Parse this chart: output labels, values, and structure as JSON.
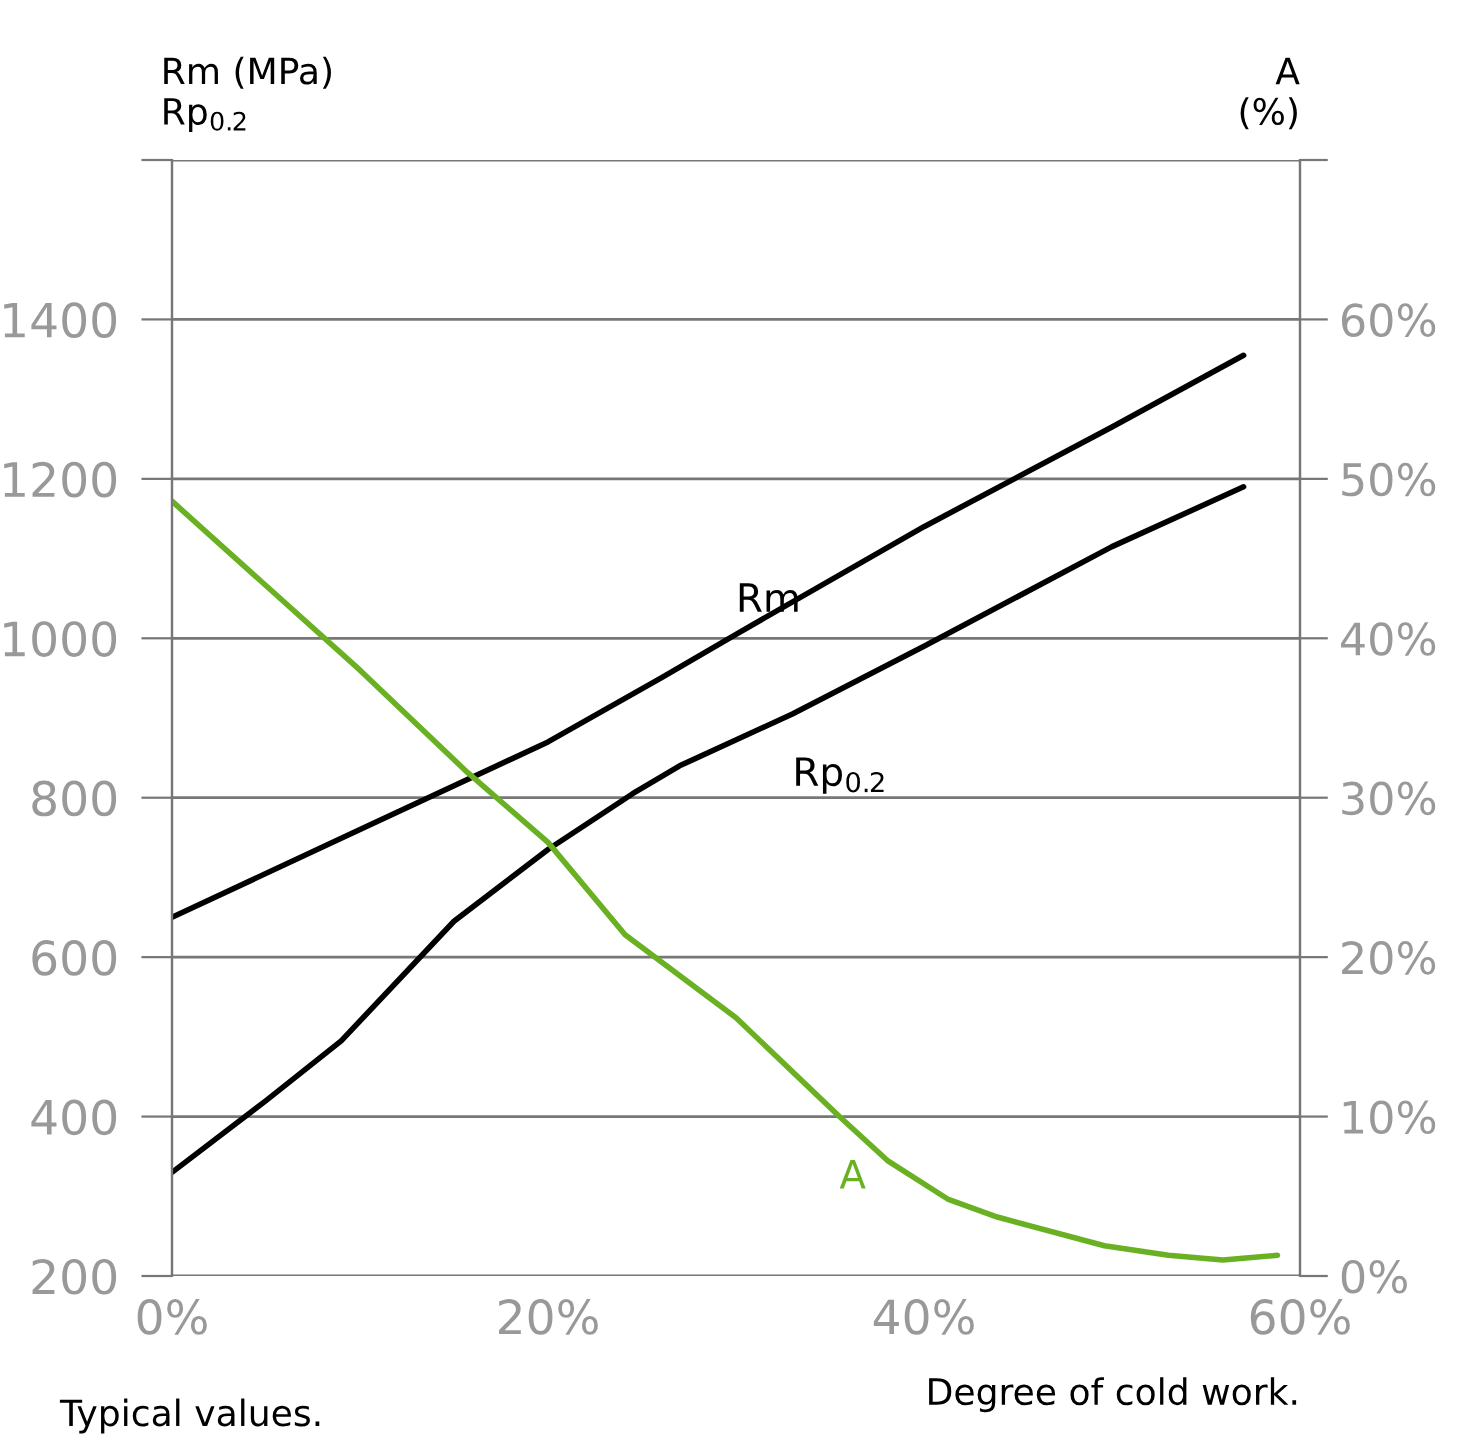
{
  "chart_data": {
    "type": "line",
    "ylabel": "Rm (MPa)\nRp$_{0.2}$",
    "y2label": "A\n(%)",
    "xlabel": "Degree of cold work.",
    "annotations": [
      "Typical values."
    ],
    "xlim": [
      0,
      60
    ],
    "xticks": [
      {
        "value": 0,
        "label": "0%"
      },
      {
        "value": 20,
        "label": "20%"
      },
      {
        "value": 40,
        "label": "40%"
      },
      {
        "value": 60,
        "label": "60%"
      }
    ],
    "ylim": [
      200,
      1600
    ],
    "yticks": [
      200,
      400,
      600,
      800,
      1000,
      1200,
      1400,
      {
        "value": 1600,
        "label": null
      }
    ],
    "y2lim": [
      0,
      70
    ],
    "y2ticks": [
      {
        "value": 0,
        "label": "0%"
      },
      {
        "value": 10,
        "label": "10%"
      },
      {
        "value": 20,
        "label": "20%"
      },
      {
        "value": 30,
        "label": "30%"
      },
      {
        "value": 40,
        "label": "40%"
      },
      {
        "value": 50,
        "label": "50%"
      },
      {
        "value": 60,
        "label": "60%"
      },
      {
        "value": 70,
        "label": null
      }
    ],
    "grid": "y",
    "series": [
      {
        "name": "Rm",
        "color": "#000000",
        "x": [
          0,
          10,
          20,
          26,
          30,
          40,
          50,
          57
        ],
        "values": [
          650,
          760,
          870,
          950,
          1005,
          1140,
          1265,
          1355
        ]
      },
      {
        "name": "Rp$_{0.2}$",
        "color": "#000000",
        "x": [
          0,
          5,
          9,
          15,
          20,
          24.5,
          27,
          33,
          40,
          50,
          57
        ],
        "values": [
          330,
          420,
          495,
          645,
          735,
          805,
          840,
          905,
          990,
          1115,
          1190
        ]
      },
      {
        "name": "A",
        "color": "#6ab023",
        "axis": "y2",
        "x": [
          0,
          10,
          15.7,
          20,
          24.1,
          30,
          35.5,
          38.1,
          41.3,
          43.9,
          49.6,
          53,
          55.9,
          58.8
        ],
        "values": [
          48.6,
          38,
          31.6,
          27.2,
          21.4,
          16.2,
          10,
          7.2,
          4.8,
          3.7,
          1.9,
          1.3,
          1.0,
          1.3
        ]
      }
    ]
  }
}
